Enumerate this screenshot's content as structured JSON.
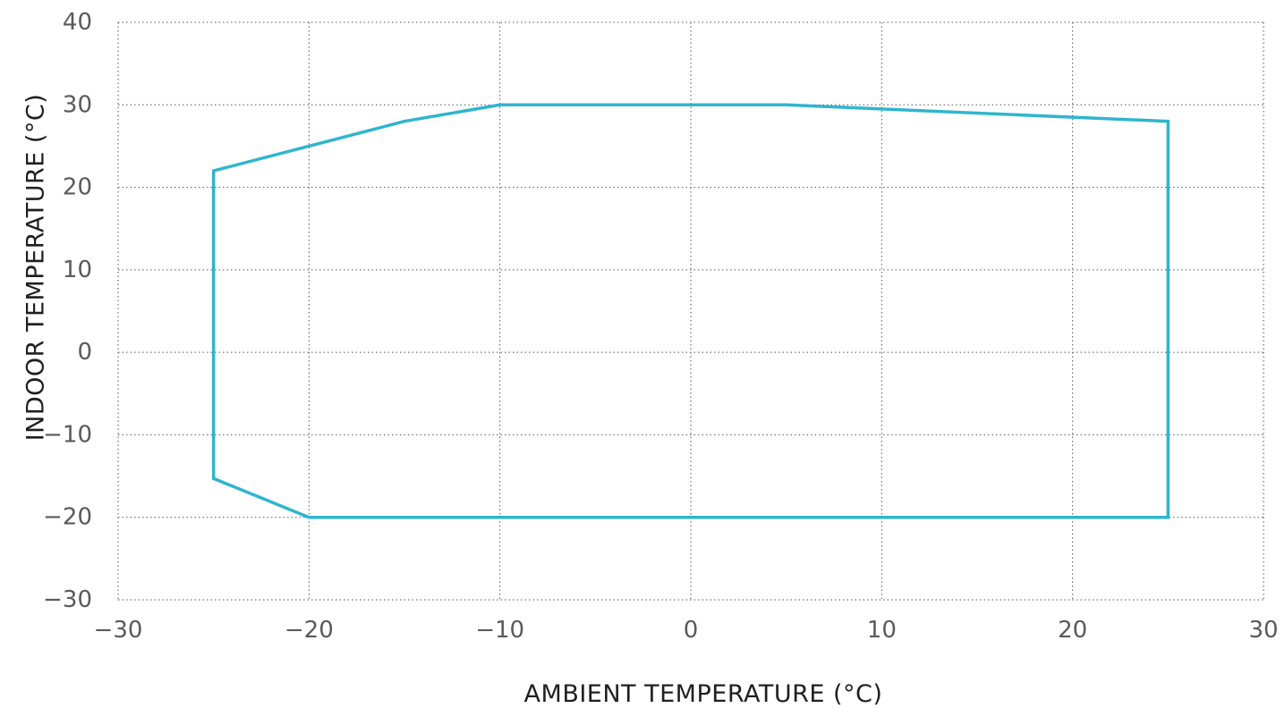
{
  "chart_data": {
    "type": "line",
    "title": "",
    "xlabel": "AMBIENT TEMPERATURE (°C)",
    "ylabel": "INDOOR TEMPERATURE (°C)",
    "xlim": [
      -30,
      30
    ],
    "ylim": [
      -30,
      40
    ],
    "x_ticks": [
      -30,
      -20,
      -10,
      0,
      10,
      20,
      30
    ],
    "y_ticks": [
      -30,
      -20,
      -10,
      0,
      10,
      20,
      30,
      40
    ],
    "x_tick_labels": [
      "−30",
      "−20",
      "−10",
      "0",
      "10",
      "20",
      "30"
    ],
    "y_tick_labels": [
      "−30",
      "−20",
      "−10",
      "0",
      "10",
      "20",
      "30",
      "40"
    ],
    "grid": true,
    "grid_style": "dotted",
    "series": [
      {
        "closed": true,
        "color": "#2fb5cf",
        "points": [
          {
            "x": -25,
            "y": 22
          },
          {
            "x": -15,
            "y": 28
          },
          {
            "x": -10,
            "y": 30
          },
          {
            "x": 5,
            "y": 30
          },
          {
            "x": 25,
            "y": 28
          },
          {
            "x": 25,
            "y": -20
          },
          {
            "x": -20,
            "y": -20
          },
          {
            "x": -25,
            "y": -15.3
          }
        ]
      }
    ]
  }
}
